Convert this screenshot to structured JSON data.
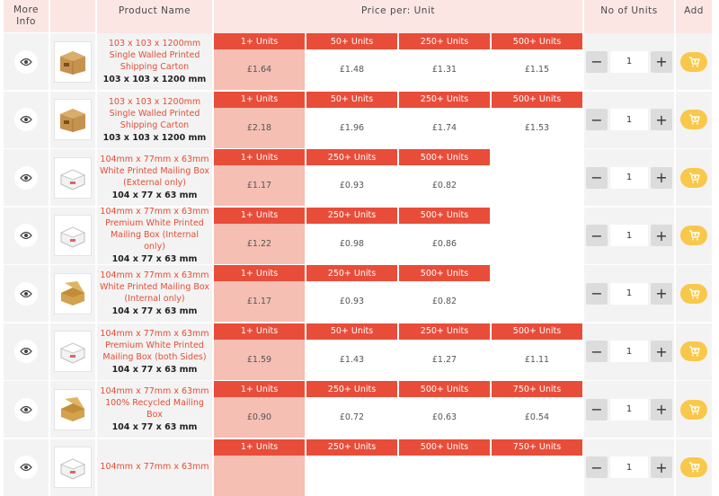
{
  "header": {
    "more_info": "More Info",
    "product_name": "Product Name",
    "price_per_unit": "Price per: Unit",
    "no_of_units": "No of Units",
    "add": "Add"
  },
  "colors": {
    "header_bg": "#fbe6e4",
    "tier_red": "#e84d3a",
    "first_price_bg": "#f5bfb4",
    "cart_yellow": "#f9c84a",
    "name_red": "#e44d35"
  },
  "icons": {
    "info": "eye-icon",
    "add": "cart-icon",
    "minus": "minus-icon",
    "plus": "plus-icon"
  },
  "rows": [
    {
      "name": "103 x 103 x 1200mm Single Walled Printed Shipping Carton",
      "dims": "103 x 103 x 1200 mm",
      "qty": "1",
      "thumb": "brown-carton",
      "tiers": [
        {
          "label": "1+ Units",
          "price": "£1.64"
        },
        {
          "label": "50+ Units",
          "price": "£1.48"
        },
        {
          "label": "250+ Units",
          "price": "£1.31"
        },
        {
          "label": "500+ Units",
          "price": "£1.15"
        }
      ]
    },
    {
      "name": "103 x 103 x 1200mm Single Walled Printed Shipping Carton",
      "dims": "103 x 103 x 1200 mm",
      "qty": "1",
      "thumb": "brown-carton",
      "tiers": [
        {
          "label": "1+ Units",
          "price": "£2.18"
        },
        {
          "label": "50+ Units",
          "price": "£1.96"
        },
        {
          "label": "250+ Units",
          "price": "£1.74"
        },
        {
          "label": "500+ Units",
          "price": "£1.53"
        }
      ]
    },
    {
      "name": "104mm x 77mm x 63mm White Printed Mailing Box (External only)",
      "dims": "104 x 77 x 63 mm",
      "qty": "1",
      "thumb": "white-box",
      "tiers": [
        {
          "label": "1+ Units",
          "price": "£1.17"
        },
        {
          "label": "250+ Units",
          "price": "£0.93"
        },
        {
          "label": "500+ Units",
          "price": "£0.82"
        }
      ]
    },
    {
      "name": "104mm x 77mm x 63mm Premium White Printed Mailing Box (Internal only)",
      "dims": "104 x 77 x 63 mm",
      "qty": "1",
      "thumb": "white-box",
      "tiers": [
        {
          "label": "1+ Units",
          "price": "£1.22"
        },
        {
          "label": "250+ Units",
          "price": "£0.98"
        },
        {
          "label": "500+ Units",
          "price": "£0.86"
        }
      ]
    },
    {
      "name": "104mm x 77mm x 63mm White Printed Mailing Box (Internal only)",
      "dims": "104 x 77 x 63 mm",
      "qty": "1",
      "thumb": "kraft-box",
      "tiers": [
        {
          "label": "1+ Units",
          "price": "£1.17"
        },
        {
          "label": "250+ Units",
          "price": "£0.93"
        },
        {
          "label": "500+ Units",
          "price": "£0.82"
        }
      ]
    },
    {
      "name": "104mm x 77mm x 63mm Premium White Printed Mailing Box (both Sides)",
      "dims": "104 x 77 x 63 mm",
      "qty": "1",
      "thumb": "white-box",
      "tiers": [
        {
          "label": "1+ Units",
          "price": "£1.59"
        },
        {
          "label": "50+ Units",
          "price": "£1.43"
        },
        {
          "label": "250+ Units",
          "price": "£1.27"
        },
        {
          "label": "500+ Units",
          "price": "£1.11"
        }
      ]
    },
    {
      "name": "104mm x 77mm x 63mm 100% Recycled Mailing Box",
      "dims": "104 x 77 x 63 mm",
      "qty": "1",
      "thumb": "kraft-box",
      "tiers": [
        {
          "label": "1+ Units",
          "price": "£0.90"
        },
        {
          "label": "250+ Units",
          "price": "£0.72"
        },
        {
          "label": "500+ Units",
          "price": "£0.63"
        },
        {
          "label": "750+ Units",
          "price": "£0.54"
        }
      ]
    },
    {
      "name": "104mm x 77mm x 63mm",
      "dims": "",
      "qty": "1",
      "thumb": "white-box",
      "tiers": [
        {
          "label": "1+ Units",
          "price": ""
        },
        {
          "label": "250+ Units",
          "price": ""
        },
        {
          "label": "500+ Units",
          "price": ""
        },
        {
          "label": "750+ Units",
          "price": ""
        }
      ]
    }
  ]
}
